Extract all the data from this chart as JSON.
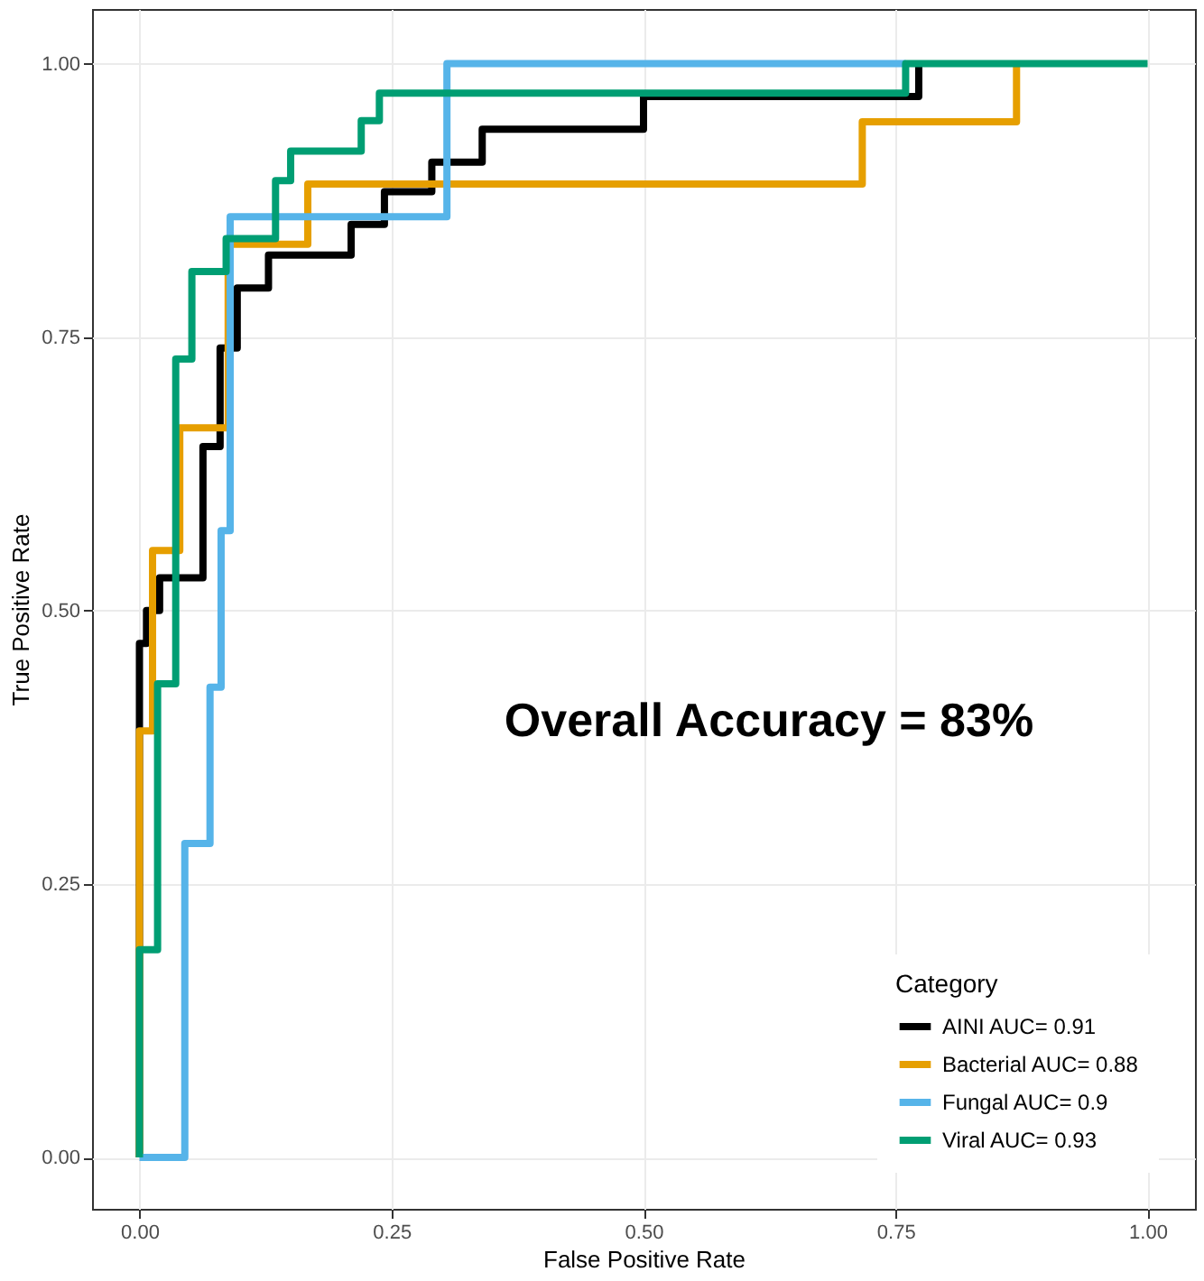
{
  "chart_data": {
    "type": "step",
    "xlabel": "False Positive Rate",
    "ylabel": "True Positive Rate",
    "legend_title": "Category",
    "legend": "bottom right",
    "grid": true,
    "xlim": [
      -0.047,
      1.047
    ],
    "ylim": [
      -0.047,
      1.05
    ],
    "xticks": [
      {
        "value": 0,
        "label": "0.00"
      },
      {
        "value": 0.25,
        "label": "0.25"
      },
      {
        "value": 0.5,
        "label": "0.50"
      },
      {
        "value": 0.75,
        "label": "0.75"
      },
      {
        "value": 1,
        "label": "1.00"
      }
    ],
    "yticks": [
      {
        "value": 0,
        "label": "0.00"
      },
      {
        "value": 0.25,
        "label": "0.25"
      },
      {
        "value": 0.5,
        "label": "0.50"
      },
      {
        "value": 0.75,
        "label": "0.75"
      },
      {
        "value": 1,
        "label": "1.00"
      }
    ],
    "annotations": [
      "Overall Accuracy = 83%"
    ],
    "series": [
      {
        "name": "AINI AUC= 0.91",
        "color": "#000000",
        "x": [
          0,
          0,
          0.007,
          0.02,
          0.063,
          0.08,
          0.097,
          0.128,
          0.21,
          0.243,
          0.29,
          0.34,
          0.5,
          0.773
        ],
        "values": [
          0,
          0.47,
          0.5,
          0.53,
          0.65,
          0.74,
          0.795,
          0.825,
          0.853,
          0.883,
          0.91,
          0.94,
          0.97,
          1
        ]
      },
      {
        "name": "Bacterial AUC= 0.88",
        "color": "#e69f00",
        "x": [
          0,
          0,
          0.013,
          0.04,
          0.088,
          0.167,
          0.717,
          0.87
        ],
        "values": [
          0,
          0.39,
          0.555,
          0.667,
          0.835,
          0.89,
          0.947,
          1
        ]
      },
      {
        "name": "Fungal AUC= 0.9",
        "color": "#56b4e9",
        "x": [
          0,
          0.045,
          0.07,
          0.081,
          0.09,
          0.305,
          0.76
        ],
        "values": [
          0,
          0.287,
          0.43,
          0.573,
          0.86,
          1,
          1
        ]
      },
      {
        "name": "Viral AUC= 0.93",
        "color": "#009e73",
        "x": [
          0,
          0,
          0.018,
          0.036,
          0.052,
          0.086,
          0.135,
          0.15,
          0.22,
          0.238,
          0.76,
          1
        ],
        "values": [
          0,
          0.19,
          0.433,
          0.73,
          0.81,
          0.84,
          0.893,
          0.92,
          0.948,
          0.973,
          1,
          1
        ],
        "type": "step"
      }
    ]
  }
}
